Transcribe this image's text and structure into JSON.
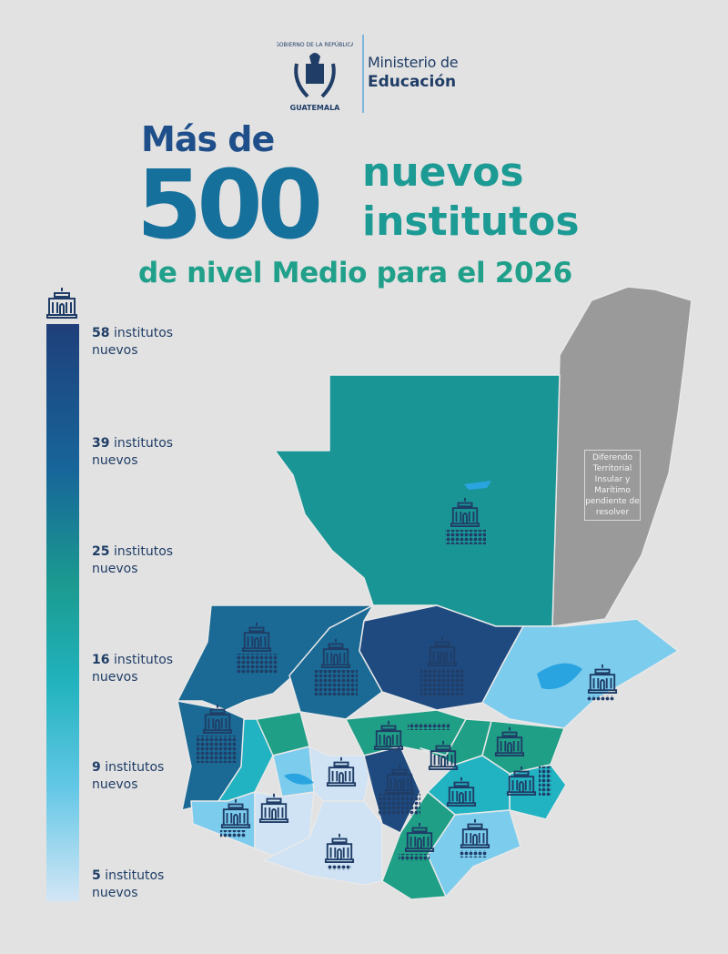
{
  "header": {
    "seal_text_top": "GOBIERNO DE LA REPÚBLICA",
    "seal_text_bottom": "GUATEMALA",
    "ministry_line1": "Ministerio de",
    "ministry_line2": "Educación"
  },
  "title": {
    "line1": "Más de",
    "number": "500",
    "line2a": "nuevos",
    "line2b": "institutos",
    "subtitle": "de nivel Medio para el 2026"
  },
  "legend": {
    "items": [
      {
        "count": "58",
        "label": "institutos",
        "label2": "nuevos"
      },
      {
        "count": "39",
        "label": "institutos",
        "label2": "nuevos"
      },
      {
        "count": "25",
        "label": " institutos",
        "label2": "nuevos"
      },
      {
        "count": "16",
        "label": "institutos",
        "label2": "nuevos"
      },
      {
        "count": "9",
        "label": "institutos",
        "label2": "nuevos"
      },
      {
        "count": "5",
        "label": "institutos",
        "label2": "nuevos"
      }
    ],
    "colors": [
      "#1f3f7a",
      "#17659a",
      "#1b9a90",
      "#21b3bd",
      "#62c7e6",
      "#d3e6f6"
    ]
  },
  "map": {
    "dispute_note": "Diferendo Territorial Insular y Marítimo pendiente de resolver",
    "colors": {
      "dark_navy": "#1f4a80",
      "blue": "#1a6a95",
      "teal": "#1a9595",
      "green": "#1f9f86",
      "cyan": "#22b3c2",
      "light_blue": "#7cccee",
      "pale": "#cfe3f5",
      "belize": "#9a9a9a",
      "lake": "#2aa4e0",
      "icon": "#1f3d66"
    }
  }
}
